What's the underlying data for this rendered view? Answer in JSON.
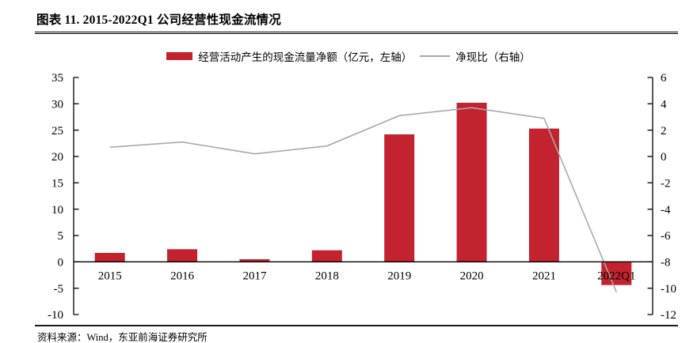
{
  "header": {
    "title": "图表 11. 2015-2022Q1 公司经营性现金流情况"
  },
  "legend": {
    "bar_label": "经营活动产生的现金流量净额（亿元，左轴）",
    "line_label": "净现比（右轴）"
  },
  "footer": {
    "source": "资料来源：Wind，东亚前海证券研究所"
  },
  "colors": {
    "bar": "#C2232E",
    "line": "#A9A9A9",
    "axis": "#000000",
    "text": "#000000"
  },
  "chart_data": {
    "type": "bar",
    "subtype": "combo-bar-line",
    "title": "2015-2022Q1 公司经营性现金流情况",
    "categories": [
      "2015",
      "2016",
      "2017",
      "2018",
      "2019",
      "2020",
      "2021",
      "2022Q1"
    ],
    "series": [
      {
        "name": "经营活动产生的现金流量净额（亿元，左轴）",
        "type": "bar",
        "axis": "left",
        "values": [
          1.7,
          2.4,
          0.5,
          2.2,
          24.2,
          30.2,
          25.3,
          -4.4
        ]
      },
      {
        "name": "净现比（右轴）",
        "type": "line",
        "axis": "right",
        "values": [
          0.7,
          1.1,
          0.2,
          0.8,
          3.1,
          3.7,
          2.9,
          -10.3
        ]
      }
    ],
    "left_axis": {
      "label": "亿元",
      "min": -10,
      "max": 35,
      "step": 5,
      "ticks": [
        35,
        30,
        25,
        20,
        15,
        10,
        5,
        0,
        -5,
        -10
      ]
    },
    "right_axis": {
      "label": "净现比",
      "min": -12,
      "max": 6,
      "step": 2,
      "ticks": [
        6,
        4,
        2,
        0,
        -2,
        -4,
        -6,
        -8,
        -10,
        -12
      ]
    },
    "grid": false,
    "legend_position": "top-center"
  }
}
